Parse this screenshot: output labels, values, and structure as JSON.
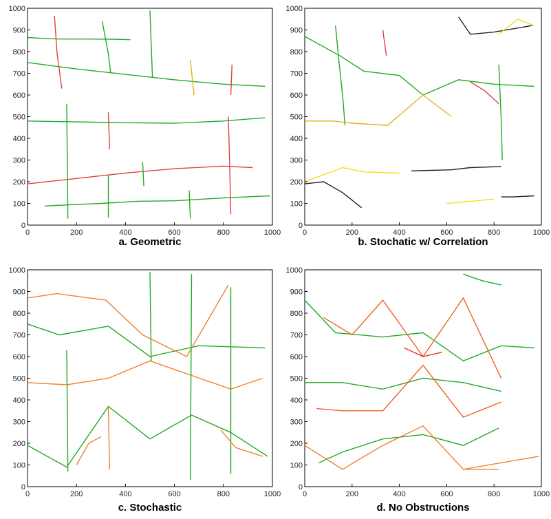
{
  "chart_data": [
    {
      "type": "line",
      "title": "a. Geometric",
      "xlim": [
        0,
        1000
      ],
      "ylim": [
        0,
        1000
      ],
      "xticks": [
        0,
        200,
        400,
        600,
        800,
        1000
      ],
      "yticks": [
        0,
        100,
        200,
        300,
        400,
        500,
        600,
        700,
        800,
        900,
        1000
      ],
      "grid": false,
      "series": [
        {
          "color": "#22aa22",
          "x": [
            0,
            200,
            400,
            600,
            800,
            970
          ],
          "y": [
            750,
            720,
            695,
            670,
            650,
            640
          ]
        },
        {
          "color": "#22aa22",
          "x": [
            0,
            100,
            200,
            400,
            600,
            800,
            970
          ],
          "y": [
            480,
            478,
            476,
            472,
            470,
            480,
            495
          ]
        },
        {
          "color": "#e04040",
          "x": [
            0,
            200,
            400,
            600,
            800,
            920
          ],
          "y": [
            190,
            215,
            240,
            260,
            272,
            265
          ]
        },
        {
          "color": "#22aa22",
          "x": [
            70,
            200,
            300,
            450,
            600,
            800,
            990
          ],
          "y": [
            88,
            95,
            100,
            110,
            112,
            125,
            135
          ]
        },
        {
          "color": "#22aa22",
          "x": [
            0,
            80,
            130,
            250,
            350,
            420
          ],
          "y": [
            865,
            860,
            858,
            858,
            857,
            855
          ]
        },
        {
          "color": "#e04040",
          "x": [
            110,
            120,
            140
          ],
          "y": [
            965,
            800,
            630
          ]
        },
        {
          "color": "#22aa22",
          "x": [
            160,
            165
          ],
          "y": [
            560,
            30
          ]
        },
        {
          "color": "#22aa22",
          "x": [
            305,
            330,
            340
          ],
          "y": [
            940,
            790,
            700
          ]
        },
        {
          "color": "#22aa22",
          "x": [
            500,
            510
          ],
          "y": [
            990,
            680
          ]
        },
        {
          "color": "#e8b020",
          "x": [
            665,
            680
          ],
          "y": [
            760,
            600
          ]
        },
        {
          "color": "#e04040",
          "x": [
            835,
            830
          ],
          "y": [
            740,
            600
          ]
        },
        {
          "color": "#e04040",
          "x": [
            820,
            825,
            830
          ],
          "y": [
            500,
            300,
            50
          ]
        },
        {
          "color": "#e04040",
          "x": [
            330,
            335
          ],
          "y": [
            520,
            350
          ]
        },
        {
          "color": "#22aa22",
          "x": [
            470,
            475
          ],
          "y": [
            290,
            180
          ]
        },
        {
          "color": "#22aa22",
          "x": [
            330,
            330
          ],
          "y": [
            230,
            35
          ]
        },
        {
          "color": "#22aa22",
          "x": [
            660,
            665
          ],
          "y": [
            160,
            30
          ]
        }
      ]
    },
    {
      "type": "line",
      "title": "b. Stochatic w/ Correlation",
      "xlim": [
        0,
        1000
      ],
      "ylim": [
        0,
        1000
      ],
      "xticks": [
        0,
        200,
        400,
        600,
        800,
        1000
      ],
      "yticks": [
        0,
        100,
        200,
        300,
        400,
        500,
        600,
        700,
        800,
        900,
        1000
      ],
      "grid": false,
      "series": [
        {
          "color": "#22aa22",
          "x": [
            0,
            150,
            250,
            400,
            500,
            650,
            800,
            970
          ],
          "y": [
            870,
            780,
            710,
            690,
            600,
            670,
            650,
            640
          ]
        },
        {
          "color": "#e8b020",
          "x": [
            0,
            120,
            200,
            350,
            500,
            620
          ],
          "y": [
            480,
            480,
            470,
            460,
            600,
            500
          ]
        },
        {
          "color": "#f0e020",
          "x": [
            0,
            160,
            250,
            400
          ],
          "y": [
            200,
            265,
            245,
            240
          ]
        },
        {
          "color": "#222222",
          "x": [
            450,
            620,
            700,
            830
          ],
          "y": [
            250,
            255,
            265,
            270
          ]
        },
        {
          "color": "#222222",
          "x": [
            0,
            80,
            160,
            240
          ],
          "y": [
            190,
            200,
            150,
            80
          ]
        },
        {
          "color": "#22aa22",
          "x": [
            130,
            145,
            160,
            170
          ],
          "y": [
            920,
            750,
            600,
            460
          ]
        },
        {
          "color": "#e04040",
          "x": [
            330,
            345
          ],
          "y": [
            900,
            780
          ]
        },
        {
          "color": "#222222",
          "x": [
            650,
            700,
            800,
            960
          ],
          "y": [
            960,
            880,
            890,
            920
          ]
        },
        {
          "color": "#f0e020",
          "x": [
            820,
            900,
            970
          ],
          "y": [
            880,
            950,
            920
          ]
        },
        {
          "color": "#22aa22",
          "x": [
            820,
            830,
            835
          ],
          "y": [
            740,
            500,
            300
          ]
        },
        {
          "color": "#e04040",
          "x": [
            700,
            760,
            820
          ],
          "y": [
            660,
            620,
            560
          ]
        },
        {
          "color": "#222222",
          "x": [
            830,
            880,
            970
          ],
          "y": [
            130,
            130,
            135
          ]
        },
        {
          "color": "#f0e020",
          "x": [
            600,
            700,
            800
          ],
          "y": [
            100,
            110,
            120
          ]
        }
      ]
    },
    {
      "type": "line",
      "title": "c. Stochastic",
      "xlim": [
        0,
        1000
      ],
      "ylim": [
        0,
        1000
      ],
      "xticks": [
        0,
        200,
        400,
        600,
        800,
        1000
      ],
      "yticks": [
        0,
        100,
        200,
        300,
        400,
        500,
        600,
        700,
        800,
        900,
        1000
      ],
      "grid": false,
      "series": [
        {
          "color": "#22aa22",
          "x": [
            0,
            130,
            330,
            500,
            700,
            970
          ],
          "y": [
            750,
            700,
            740,
            600,
            650,
            640
          ]
        },
        {
          "color": "#f08030",
          "x": [
            0,
            160,
            330,
            500,
            830,
            960
          ],
          "y": [
            480,
            470,
            500,
            580,
            450,
            500
          ]
        },
        {
          "color": "#22aa22",
          "x": [
            0,
            160,
            330,
            500,
            670,
            830,
            980
          ],
          "y": [
            190,
            90,
            370,
            220,
            330,
            250,
            140
          ]
        },
        {
          "color": "#f08030",
          "x": [
            0,
            120,
            320,
            470,
            650,
            820
          ],
          "y": [
            870,
            890,
            860,
            700,
            600,
            930
          ]
        },
        {
          "color": "#22aa22",
          "x": [
            500,
            505
          ],
          "y": [
            990,
            580
          ]
        },
        {
          "color": "#22aa22",
          "x": [
            670,
            665
          ],
          "y": [
            980,
            30
          ]
        },
        {
          "color": "#22aa22",
          "x": [
            160,
            165
          ],
          "y": [
            630,
            70
          ]
        },
        {
          "color": "#f08030",
          "x": [
            330,
            335
          ],
          "y": [
            370,
            80
          ]
        },
        {
          "color": "#22aa22",
          "x": [
            830,
            830
          ],
          "y": [
            920,
            60
          ]
        },
        {
          "color": "#f08030",
          "x": [
            200,
            250,
            300
          ],
          "y": [
            100,
            200,
            230
          ]
        },
        {
          "color": "#f08030",
          "x": [
            790,
            850,
            960
          ],
          "y": [
            260,
            180,
            140
          ]
        }
      ]
    },
    {
      "type": "line",
      "title": "d. No Obstructions",
      "xlim": [
        0,
        1000
      ],
      "ylim": [
        0,
        1000
      ],
      "xticks": [
        0,
        200,
        400,
        600,
        800,
        1000
      ],
      "yticks": [
        0,
        100,
        200,
        300,
        400,
        500,
        600,
        700,
        800,
        900,
        1000
      ],
      "grid": false,
      "series": [
        {
          "color": "#22aa22",
          "x": [
            0,
            130,
            330,
            500,
            670,
            830,
            970
          ],
          "y": [
            860,
            710,
            690,
            710,
            580,
            650,
            640
          ]
        },
        {
          "color": "#f06020",
          "x": [
            80,
            200,
            330,
            500,
            670,
            830
          ],
          "y": [
            780,
            700,
            860,
            600,
            870,
            500
          ]
        },
        {
          "color": "#22aa22",
          "x": [
            0,
            160,
            330,
            500,
            670,
            830
          ],
          "y": [
            480,
            480,
            450,
            500,
            480,
            440
          ]
        },
        {
          "color": "#f06020",
          "x": [
            50,
            160,
            330,
            500,
            670,
            830
          ],
          "y": [
            360,
            350,
            350,
            560,
            320,
            390
          ]
        },
        {
          "color": "#22aa22",
          "x": [
            60,
            160,
            330,
            500,
            670,
            820
          ],
          "y": [
            110,
            160,
            220,
            240,
            190,
            270
          ]
        },
        {
          "color": "#f08030",
          "x": [
            0,
            160,
            330,
            500,
            670,
            990
          ],
          "y": [
            190,
            80,
            190,
            280,
            80,
            140
          ]
        },
        {
          "color": "#e03020",
          "x": [
            420,
            500,
            580
          ],
          "y": [
            640,
            600,
            620
          ]
        },
        {
          "color": "#22aa22",
          "x": [
            670,
            750,
            830
          ],
          "y": [
            980,
            950,
            930
          ]
        },
        {
          "color": "#f08030",
          "x": [
            670,
            750,
            820
          ],
          "y": [
            80,
            80,
            80
          ]
        }
      ]
    }
  ]
}
